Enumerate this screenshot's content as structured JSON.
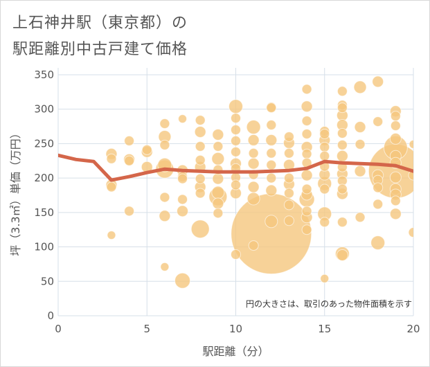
{
  "title_line1": "上石神井駅（東京都）の",
  "title_line2": "駅距離別中古戸建て価格",
  "colors": {
    "bubble": "#f5c77e",
    "line": "#d4664a",
    "grid": "#d6dfe8",
    "axis_text": "#555555"
  },
  "chart_data": {
    "type": "scatter",
    "title": "上石神井駅（東京都）の駅距離別中古戸建て価格",
    "xlabel": "駅距離（分）",
    "ylabel": "坪（3.3㎡）単価（万円）",
    "xlim": [
      0,
      20
    ],
    "ylim": [
      0,
      360
    ],
    "x_ticks": [
      0,
      5,
      10,
      15,
      20
    ],
    "y_ticks": [
      0,
      50,
      100,
      150,
      200,
      250,
      300,
      350
    ],
    "grid": true,
    "note": "円の大きさは、取引のあった物件面積を示す",
    "series": [
      {
        "type": "bubble",
        "points": [
          {
            "x": 3,
            "y": 235,
            "s": 8
          },
          {
            "x": 3,
            "y": 228,
            "s": 7
          },
          {
            "x": 3,
            "y": 190,
            "s": 8
          },
          {
            "x": 3,
            "y": 187,
            "s": 7
          },
          {
            "x": 3,
            "y": 117,
            "s": 6
          },
          {
            "x": 4,
            "y": 254,
            "s": 7
          },
          {
            "x": 4,
            "y": 227,
            "s": 8
          },
          {
            "x": 4,
            "y": 225,
            "s": 7
          },
          {
            "x": 4,
            "y": 152,
            "s": 7
          },
          {
            "x": 5,
            "y": 241,
            "s": 7
          },
          {
            "x": 5,
            "y": 238,
            "s": 8
          },
          {
            "x": 5,
            "y": 216,
            "s": 8
          },
          {
            "x": 6,
            "y": 279,
            "s": 7
          },
          {
            "x": 6,
            "y": 260,
            "s": 9
          },
          {
            "x": 6,
            "y": 248,
            "s": 7
          },
          {
            "x": 6,
            "y": 219,
            "s": 10
          },
          {
            "x": 6,
            "y": 213,
            "s": 13
          },
          {
            "x": 6,
            "y": 172,
            "s": 7
          },
          {
            "x": 6,
            "y": 145,
            "s": 8
          },
          {
            "x": 6,
            "y": 71,
            "s": 6
          },
          {
            "x": 7,
            "y": 286,
            "s": 6
          },
          {
            "x": 7,
            "y": 211,
            "s": 8
          },
          {
            "x": 7,
            "y": 202,
            "s": 7
          },
          {
            "x": 7,
            "y": 199,
            "s": 7
          },
          {
            "x": 7,
            "y": 169,
            "s": 7
          },
          {
            "x": 7,
            "y": 152,
            "s": 8
          },
          {
            "x": 7,
            "y": 51,
            "s": 11
          },
          {
            "x": 8,
            "y": 284,
            "s": 7
          },
          {
            "x": 8,
            "y": 267,
            "s": 8
          },
          {
            "x": 8,
            "y": 246,
            "s": 7
          },
          {
            "x": 8,
            "y": 226,
            "s": 7
          },
          {
            "x": 8,
            "y": 216,
            "s": 8
          },
          {
            "x": 8,
            "y": 199,
            "s": 7
          },
          {
            "x": 8,
            "y": 187,
            "s": 8
          },
          {
            "x": 8,
            "y": 178,
            "s": 7
          },
          {
            "x": 8,
            "y": 126,
            "s": 13
          },
          {
            "x": 9,
            "y": 263,
            "s": 8
          },
          {
            "x": 9,
            "y": 246,
            "s": 7
          },
          {
            "x": 9,
            "y": 228,
            "s": 9
          },
          {
            "x": 9,
            "y": 212,
            "s": 7
          },
          {
            "x": 9,
            "y": 199,
            "s": 8
          },
          {
            "x": 9,
            "y": 179,
            "s": 9
          },
          {
            "x": 9,
            "y": 173,
            "s": 13
          },
          {
            "x": 9,
            "y": 163,
            "s": 8
          },
          {
            "x": 9,
            "y": 149,
            "s": 7
          },
          {
            "x": 10,
            "y": 304,
            "s": 10
          },
          {
            "x": 10,
            "y": 287,
            "s": 7
          },
          {
            "x": 10,
            "y": 270,
            "s": 7
          },
          {
            "x": 10,
            "y": 254,
            "s": 7
          },
          {
            "x": 10,
            "y": 238,
            "s": 7
          },
          {
            "x": 10,
            "y": 221,
            "s": 8
          },
          {
            "x": 10,
            "y": 214,
            "s": 7
          },
          {
            "x": 10,
            "y": 201,
            "s": 7
          },
          {
            "x": 10,
            "y": 190,
            "s": 7
          },
          {
            "x": 10,
            "y": 178,
            "s": 8
          },
          {
            "x": 10,
            "y": 89,
            "s": 7
          },
          {
            "x": 11,
            "y": 274,
            "s": 10
          },
          {
            "x": 11,
            "y": 255,
            "s": 8
          },
          {
            "x": 11,
            "y": 236,
            "s": 7
          },
          {
            "x": 11,
            "y": 221,
            "s": 8
          },
          {
            "x": 11,
            "y": 205,
            "s": 7
          },
          {
            "x": 11,
            "y": 187,
            "s": 8
          },
          {
            "x": 11,
            "y": 170,
            "s": 9
          },
          {
            "x": 11,
            "y": 102,
            "s": 7
          },
          {
            "x": 12,
            "y": 303,
            "s": 7
          },
          {
            "x": 12,
            "y": 302,
            "s": 7
          },
          {
            "x": 12,
            "y": 277,
            "s": 7
          },
          {
            "x": 12,
            "y": 255,
            "s": 8
          },
          {
            "x": 12,
            "y": 236,
            "s": 7
          },
          {
            "x": 12,
            "y": 219,
            "s": 7
          },
          {
            "x": 12,
            "y": 200,
            "s": 7
          },
          {
            "x": 12,
            "y": 182,
            "s": 8
          },
          {
            "x": 12,
            "y": 137,
            "s": 9
          },
          {
            "x": 12,
            "y": 119,
            "s": 58
          },
          {
            "x": 13,
            "y": 260,
            "s": 7
          },
          {
            "x": 13,
            "y": 251,
            "s": 8
          },
          {
            "x": 13,
            "y": 236,
            "s": 7
          },
          {
            "x": 13,
            "y": 219,
            "s": 8
          },
          {
            "x": 13,
            "y": 200,
            "s": 7
          },
          {
            "x": 13,
            "y": 191,
            "s": 8
          },
          {
            "x": 13,
            "y": 178,
            "s": 7
          },
          {
            "x": 13,
            "y": 161,
            "s": 7
          },
          {
            "x": 13,
            "y": 138,
            "s": 7
          },
          {
            "x": 14,
            "y": 329,
            "s": 7
          },
          {
            "x": 14,
            "y": 304,
            "s": 8
          },
          {
            "x": 14,
            "y": 283,
            "s": 7
          },
          {
            "x": 14,
            "y": 264,
            "s": 7
          },
          {
            "x": 14,
            "y": 245,
            "s": 8
          },
          {
            "x": 14,
            "y": 235,
            "s": 7
          },
          {
            "x": 14,
            "y": 222,
            "s": 7
          },
          {
            "x": 14,
            "y": 204,
            "s": 8
          },
          {
            "x": 14,
            "y": 184,
            "s": 7
          },
          {
            "x": 14,
            "y": 176,
            "s": 8
          },
          {
            "x": 14,
            "y": 169,
            "s": 11
          },
          {
            "x": 14,
            "y": 152,
            "s": 7
          },
          {
            "x": 14,
            "y": 143,
            "s": 8
          },
          {
            "x": 14,
            "y": 125,
            "s": 7
          },
          {
            "x": 15,
            "y": 268,
            "s": 7
          },
          {
            "x": 15,
            "y": 264,
            "s": 7
          },
          {
            "x": 15,
            "y": 255,
            "s": 8
          },
          {
            "x": 15,
            "y": 245,
            "s": 7
          },
          {
            "x": 15,
            "y": 232,
            "s": 7
          },
          {
            "x": 15,
            "y": 217,
            "s": 7
          },
          {
            "x": 15,
            "y": 205,
            "s": 8
          },
          {
            "x": 15,
            "y": 192,
            "s": 10
          },
          {
            "x": 15,
            "y": 184,
            "s": 7
          },
          {
            "x": 15,
            "y": 148,
            "s": 10
          },
          {
            "x": 15,
            "y": 136,
            "s": 7
          },
          {
            "x": 15,
            "y": 54,
            "s": 6
          },
          {
            "x": 16,
            "y": 326,
            "s": 7
          },
          {
            "x": 16,
            "y": 306,
            "s": 7
          },
          {
            "x": 16,
            "y": 302,
            "s": 7
          },
          {
            "x": 16,
            "y": 291,
            "s": 8
          },
          {
            "x": 16,
            "y": 277,
            "s": 8
          },
          {
            "x": 16,
            "y": 265,
            "s": 7
          },
          {
            "x": 16,
            "y": 248,
            "s": 7
          },
          {
            "x": 16,
            "y": 232,
            "s": 8
          },
          {
            "x": 16,
            "y": 216,
            "s": 7
          },
          {
            "x": 16,
            "y": 206,
            "s": 8
          },
          {
            "x": 16,
            "y": 196,
            "s": 7
          },
          {
            "x": 16,
            "y": 184,
            "s": 7
          },
          {
            "x": 16,
            "y": 177,
            "s": 8
          },
          {
            "x": 16,
            "y": 136,
            "s": 7
          },
          {
            "x": 16,
            "y": 90,
            "s": 10
          },
          {
            "x": 16,
            "y": 88,
            "s": 8
          },
          {
            "x": 17,
            "y": 332,
            "s": 9
          },
          {
            "x": 17,
            "y": 274,
            "s": 8
          },
          {
            "x": 17,
            "y": 249,
            "s": 7
          },
          {
            "x": 17,
            "y": 210,
            "s": 8
          },
          {
            "x": 17,
            "y": 143,
            "s": 7
          },
          {
            "x": 18,
            "y": 340,
            "s": 8
          },
          {
            "x": 18,
            "y": 282,
            "s": 7
          },
          {
            "x": 18,
            "y": 204,
            "s": 8
          },
          {
            "x": 18,
            "y": 197,
            "s": 7
          },
          {
            "x": 18,
            "y": 186,
            "s": 7
          },
          {
            "x": 18,
            "y": 162,
            "s": 7
          },
          {
            "x": 18,
            "y": 106,
            "s": 10
          },
          {
            "x": 19,
            "y": 297,
            "s": 8
          },
          {
            "x": 19,
            "y": 290,
            "s": 7
          },
          {
            "x": 19,
            "y": 276,
            "s": 7
          },
          {
            "x": 19,
            "y": 257,
            "s": 8
          },
          {
            "x": 19,
            "y": 244,
            "s": 17
          },
          {
            "x": 19,
            "y": 232,
            "s": 8
          },
          {
            "x": 19,
            "y": 222,
            "s": 8
          },
          {
            "x": 19,
            "y": 210,
            "s": 39
          },
          {
            "x": 19,
            "y": 201,
            "s": 8
          },
          {
            "x": 19,
            "y": 184,
            "s": 8
          },
          {
            "x": 19,
            "y": 176,
            "s": 8
          },
          {
            "x": 19,
            "y": 167,
            "s": 7
          },
          {
            "x": 19,
            "y": 148,
            "s": 8
          },
          {
            "x": 20,
            "y": 249,
            "s": 6
          },
          {
            "x": 20,
            "y": 204,
            "s": 7
          },
          {
            "x": 20,
            "y": 121,
            "s": 7
          }
        ]
      },
      {
        "type": "line",
        "x": [
          0,
          1,
          2,
          3,
          4,
          5,
          6,
          7,
          8,
          9,
          10,
          11,
          12,
          13,
          14,
          15,
          16,
          17,
          18,
          19,
          20
        ],
        "y": [
          233,
          227,
          224,
          197,
          202,
          208,
          213,
          211,
          210,
          209,
          209,
          209,
          210,
          211,
          214,
          224,
          222,
          221,
          220,
          218,
          210
        ]
      }
    ]
  }
}
